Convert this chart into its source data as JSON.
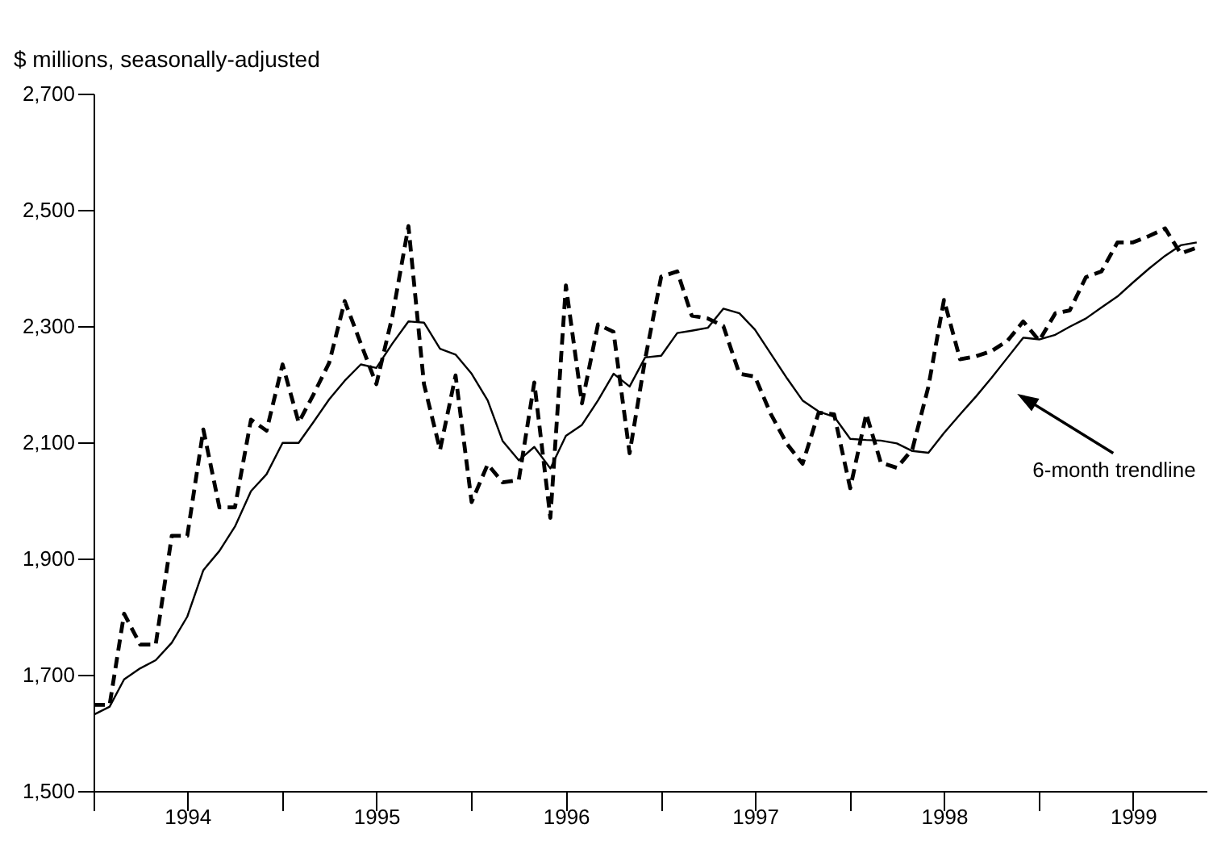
{
  "chart_data": {
    "type": "line",
    "ylabel": "$ millions, seasonally-adjusted",
    "x": [
      "1994-01",
      "1994-02",
      "1994-03",
      "1994-04",
      "1994-05",
      "1994-06",
      "1994-07",
      "1994-08",
      "1994-09",
      "1994-10",
      "1994-11",
      "1994-12",
      "1995-01",
      "1995-02",
      "1995-03",
      "1995-04",
      "1995-05",
      "1995-06",
      "1995-07",
      "1995-08",
      "1995-09",
      "1995-10",
      "1995-11",
      "1995-12",
      "1996-01",
      "1996-02",
      "1996-03",
      "1996-04",
      "1996-05",
      "1996-06",
      "1996-07",
      "1996-08",
      "1996-09",
      "1996-10",
      "1996-11",
      "1996-12",
      "1997-01",
      "1997-02",
      "1997-03",
      "1997-04",
      "1997-05",
      "1997-06",
      "1997-07",
      "1997-08",
      "1997-09",
      "1997-10",
      "1997-11",
      "1997-12",
      "1998-01",
      "1998-02",
      "1998-03",
      "1998-04",
      "1998-05",
      "1998-06",
      "1998-07",
      "1998-08",
      "1998-09",
      "1998-10",
      "1998-11",
      "1998-12",
      "1999-01",
      "1999-02",
      "1999-03",
      "1999-04",
      "1999-05",
      "1999-06",
      "1999-07",
      "1999-08",
      "1999-09",
      "1999-10",
      "1999-11"
    ],
    "series": [
      {
        "color": "#000000",
        "line_style": "dashed",
        "values": [
          1648,
          1648,
          1805,
          1752,
          1752,
          1939,
          1939,
          2122,
          1988,
          1988,
          2139,
          2120,
          2234,
          2134,
          2181,
          2237,
          2343,
          2270,
          2200,
          2317,
          2472,
          2200,
          2087,
          2215,
          1997,
          2062,
          2031,
          2035,
          2203,
          1970,
          2370,
          2167,
          2303,
          2290,
          2081,
          2243,
          2385,
          2394,
          2318,
          2313,
          2300,
          2218,
          2213,
          2148,
          2097,
          2063,
          2151,
          2148,
          2021,
          2149,
          2065,
          2056,
          2088,
          2196,
          2345,
          2243,
          2248,
          2257,
          2275,
          2308,
          2275,
          2322,
          2327,
          2384,
          2394,
          2444,
          2444,
          2455,
          2468,
          2425,
          2435
        ]
      },
      {
        "color": "#000000",
        "line_style": "solid",
        "values": [
          1631,
          1645,
          1692,
          1711,
          1725,
          1755,
          1800,
          1880,
          1913,
          1955,
          2016,
          2045,
          2099,
          2099,
          2134,
          2174,
          2206,
          2234,
          2228,
          2270,
          2308,
          2306,
          2261,
          2251,
          2218,
          2172,
          2102,
          2069,
          2092,
          2055,
          2111,
          2130,
          2172,
          2218,
          2196,
          2246,
          2249,
          2288,
          2292,
          2297,
          2330,
          2322,
          2294,
          2252,
          2210,
          2172,
          2153,
          2144,
          2106,
          2104,
          2103,
          2098,
          2085,
          2082,
          2116,
          2148,
          2179,
          2211,
          2246,
          2280,
          2277,
          2285,
          2299,
          2313,
          2332,
          2351,
          2375,
          2399,
          2421,
          2439,
          2444
        ]
      }
    ],
    "xlim": [
      "1994-01",
      "1999-11-20"
    ],
    "xticks": [
      {
        "value": "1994-01",
        "label": null
      },
      {
        "value": "1994-07",
        "label": "1994"
      },
      {
        "value": "1995-01",
        "label": null
      },
      {
        "value": "1995-07",
        "label": "1995"
      },
      {
        "value": "1996-01",
        "label": null
      },
      {
        "value": "1996-07",
        "label": "1996"
      },
      {
        "value": "1997-01",
        "label": null
      },
      {
        "value": "1997-07",
        "label": "1997"
      },
      {
        "value": "1998-01",
        "label": null
      },
      {
        "value": "1998-07",
        "label": "1998"
      },
      {
        "value": "1999-01",
        "label": null
      },
      {
        "value": "1999-07",
        "label": "1999"
      }
    ],
    "ylim": [
      1500,
      2700
    ],
    "yticks": [
      {
        "value": 1500,
        "label": "1,500"
      },
      {
        "value": 1700,
        "label": "1,700"
      },
      {
        "value": 1900,
        "label": "1,900"
      },
      {
        "value": 2100,
        "label": "2,100"
      },
      {
        "value": 2300,
        "label": "2,300"
      },
      {
        "value": 2500,
        "label": "2,500"
      },
      {
        "value": 2700,
        "label": "2,700"
      }
    ],
    "grid": false,
    "marker": "none",
    "annotations": [
      "6-month trendline"
    ]
  }
}
